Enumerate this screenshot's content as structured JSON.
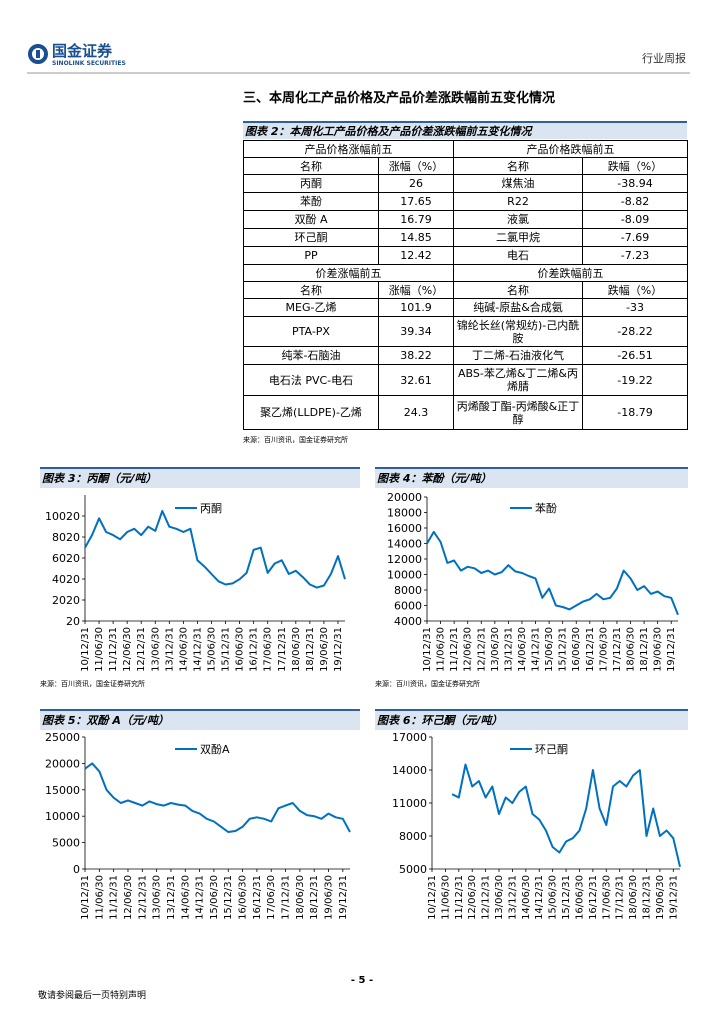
{
  "header": {
    "brand": "国金证券",
    "brand_en": "SINOLINK SECURITIES",
    "report_type": "行业周报"
  },
  "section_title": "三、本周化工产品价格及产品价差涨跌幅前五变化情况",
  "table": {
    "caption": "图表 2：本周化工产品价格及产品价差涨跌幅前五变化情况",
    "source": "来源：百川资讯，国金证券研究所",
    "sections": [
      {
        "headers": [
          "产品价格涨幅前五",
          "产品价格跌幅前五"
        ],
        "columns": [
          "名称",
          "涨幅（%）",
          "名称",
          "跌幅（%）"
        ],
        "rows": [
          [
            "丙酮",
            26,
            "煤焦油",
            -38.94
          ],
          [
            "苯酚",
            17.65,
            "R22",
            -8.82
          ],
          [
            "双酚 A",
            16.79,
            "液氯",
            -8.09
          ],
          [
            "环己酮",
            14.85,
            "二氯甲烷",
            -7.69
          ],
          [
            "PP",
            12.42,
            "电石",
            -7.23
          ]
        ]
      },
      {
        "headers": [
          "价差涨幅前五",
          "价差跌幅前五"
        ],
        "columns": [
          "名称",
          "涨幅（%）",
          "名称",
          "跌幅（%）"
        ],
        "rows": [
          [
            "MEG-乙烯",
            101.9,
            "纯碱-原盐&合成氨",
            -33
          ],
          [
            "PTA-PX",
            39.34,
            "锦纶长丝(常规纺)-己内酰胺",
            -28.22
          ],
          [
            "纯苯-石脑油",
            38.22,
            "丁二烯-石油液化气",
            -26.51
          ],
          [
            "电石法 PVC-电石",
            32.61,
            "ABS-苯乙烯&丁二烯&丙烯腈",
            -19.22
          ],
          [
            "聚乙烯(LLDPE)-乙烯",
            24.3,
            "丙烯酸丁酯-丙烯酸&正丁醇",
            -18.79
          ]
        ]
      }
    ]
  },
  "chart_data": [
    {
      "type": "line",
      "title": "图表 3：丙酮（元/吨）",
      "source": "来源：百川资讯，国金证券研究所",
      "categories": [
        "10/12/31",
        null,
        "11/06/30",
        null,
        "11/12/31",
        null,
        "12/06/30",
        null,
        "12/12/31",
        null,
        "13/06/30",
        null,
        "13/12/31",
        null,
        "14/06/30",
        null,
        "14/12/31",
        null,
        "15/06/30",
        null,
        "15/12/31",
        null,
        "16/06/30",
        null,
        "16/12/31",
        null,
        "17/06/30",
        null,
        "17/12/31",
        null,
        "18/06/30",
        null,
        "18/12/31",
        null,
        "19/06/30",
        null,
        "19/12/31",
        null
      ],
      "series": [
        {
          "name": "丙酮",
          "color": "#0070c0",
          "values": [
            7000,
            8200,
            9800,
            8500,
            8200,
            7800,
            8500,
            8800,
            8200,
            9000,
            8600,
            10500,
            9000,
            8800,
            8500,
            8800,
            5800,
            5200,
            4500,
            3800,
            3500,
            3600,
            4000,
            4600,
            6800,
            7000,
            4600,
            5500,
            5800,
            4500,
            4800,
            4200,
            3500,
            3200,
            3400,
            4500,
            6200,
            4000
          ]
        }
      ],
      "ylim": [
        20,
        12020
      ],
      "yticks": [
        20,
        2020,
        4020,
        6020,
        8020,
        10020
      ]
    },
    {
      "type": "line",
      "title": "图表 4：苯酚（元/吨）",
      "source": "来源：百川资讯，国金证券研究所",
      "categories": [
        "10/12/31",
        null,
        "11/06/30",
        null,
        "11/12/31",
        null,
        "12/06/30",
        null,
        "12/12/31",
        null,
        "13/06/30",
        null,
        "13/12/31",
        null,
        "14/06/30",
        null,
        "14/12/31",
        null,
        "15/06/30",
        null,
        "15/12/31",
        null,
        "16/06/30",
        null,
        "16/12/31",
        null,
        "17/06/30",
        null,
        "17/12/31",
        null,
        "18/06/30",
        null,
        "18/12/31",
        null,
        "19/06/30",
        null,
        "19/12/31",
        null
      ],
      "series": [
        {
          "name": "苯酚",
          "color": "#0070c0",
          "values": [
            14000,
            15500,
            14200,
            11500,
            11800,
            10500,
            11000,
            10800,
            10200,
            10500,
            10000,
            10300,
            11200,
            10400,
            10200,
            9800,
            9500,
            7000,
            8200,
            6000,
            5800,
            5500,
            6000,
            6500,
            6800,
            7500,
            6800,
            7000,
            8200,
            10500,
            9500,
            8000,
            8500,
            7500,
            7800,
            7200,
            7000,
            4800
          ]
        }
      ],
      "ylim": [
        4000,
        20000
      ],
      "yticks": [
        4000,
        6000,
        8000,
        10000,
        12000,
        14000,
        16000,
        18000,
        20000
      ]
    },
    {
      "type": "line",
      "title": "图表 5：双酚 A（元/吨）",
      "categories": [
        "10/12/31",
        null,
        "11/06/30",
        null,
        "11/12/31",
        null,
        "12/06/30",
        null,
        "12/12/31",
        null,
        "13/06/30",
        null,
        "13/12/31",
        null,
        "14/06/30",
        null,
        "14/12/31",
        null,
        "15/06/30",
        null,
        "15/12/31",
        null,
        "16/06/30",
        null,
        "16/12/31",
        null,
        "17/06/30",
        null,
        "17/12/31",
        null,
        "18/06/30",
        null,
        "18/12/31",
        null,
        "19/06/30",
        null,
        "19/12/31",
        null
      ],
      "series": [
        {
          "name": "双酚A",
          "color": "#0070c0",
          "values": [
            19000,
            20000,
            18500,
            15000,
            13500,
            12500,
            13000,
            12500,
            12000,
            12800,
            12300,
            12000,
            12500,
            12200,
            12000,
            11000,
            10500,
            9500,
            9000,
            8000,
            7000,
            7200,
            8000,
            9500,
            9800,
            9500,
            9000,
            11500,
            12000,
            12500,
            11000,
            10200,
            10000,
            9500,
            10500,
            9800,
            9500,
            7000
          ]
        }
      ],
      "ylim": [
        0,
        25000
      ],
      "yticks": [
        0,
        5000,
        10000,
        15000,
        20000,
        25000
      ]
    },
    {
      "type": "line",
      "title": "图表 6：环己酮（元/吨）",
      "categories": [
        "10/12/31",
        null,
        "11/06/30",
        null,
        "11/12/31",
        null,
        "12/06/30",
        null,
        "12/12/31",
        null,
        "13/06/30",
        null,
        "13/12/31",
        null,
        "14/06/30",
        null,
        "14/12/31",
        null,
        "15/06/30",
        null,
        "15/12/31",
        null,
        "16/06/30",
        null,
        "16/12/31",
        null,
        "17/06/30",
        null,
        "17/12/31",
        null,
        "18/06/30",
        null,
        "18/12/31",
        null,
        "19/06/30",
        null,
        "19/12/31",
        null
      ],
      "series": [
        {
          "name": "环己酮",
          "color": "#0070c0",
          "values": [
            null,
            null,
            null,
            11800,
            11500,
            14500,
            12500,
            13000,
            11500,
            12500,
            10000,
            11500,
            11000,
            12000,
            12500,
            10000,
            9500,
            8500,
            7000,
            6500,
            7500,
            7800,
            8500,
            10500,
            14000,
            10500,
            9000,
            12500,
            13000,
            12500,
            13500,
            14000,
            8000,
            10500,
            8000,
            8500,
            7800,
            5200
          ]
        }
      ],
      "ylim": [
        5000,
        17000
      ],
      "yticks": [
        5000,
        8000,
        11000,
        14000,
        17000
      ]
    }
  ],
  "footer": {
    "page": "- 5 -",
    "disclaimer": "敬请参阅最后一页特别声明"
  }
}
